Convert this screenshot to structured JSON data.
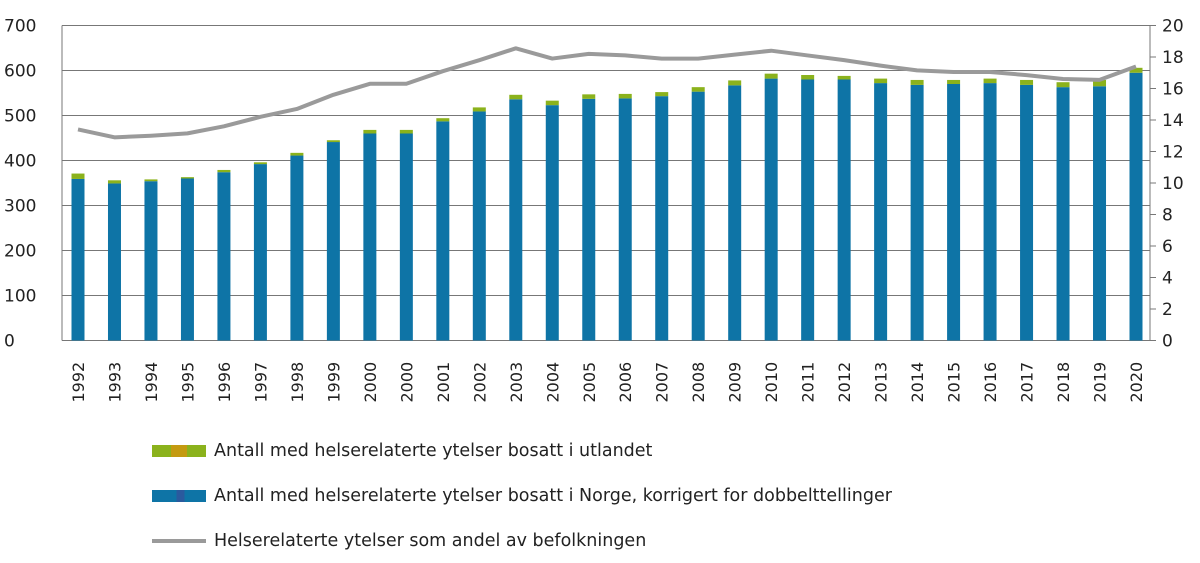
{
  "chart_data": {
    "type": "bar",
    "stacked": true,
    "categories": [
      "1992",
      "1993",
      "1994",
      "1995",
      "1996",
      "1997",
      "1998",
      "1999",
      "2000",
      "2000",
      "2001",
      "2002",
      "2003",
      "2004",
      "2005",
      "2006",
      "2007",
      "2008",
      "2009",
      "2010",
      "2011",
      "2012",
      "2013",
      "2014",
      "2015",
      "2016",
      "2017",
      "2018",
      "2019",
      "2020"
    ],
    "series": [
      {
        "name": "Antall med helserelaterte ytelser bosatt i Norge, korrigert for dobbelttellinger",
        "type": "bar",
        "axis": "left",
        "color": "#0e74a6",
        "values": [
          359,
          349,
          354,
          360,
          374,
          392,
          411,
          441,
          460,
          460,
          487,
          509,
          536,
          523,
          537,
          538,
          543,
          553,
          567,
          582,
          580,
          580,
          572,
          568,
          570,
          572,
          568,
          563,
          565,
          595
        ]
      },
      {
        "name": "Antall med helserelaterte ytelser bosatt i utlandet",
        "type": "bar",
        "axis": "left",
        "color": "#8bb21c",
        "values": [
          12,
          7,
          4,
          3,
          5,
          4,
          6,
          4,
          8,
          8,
          7,
          9,
          10,
          10,
          10,
          10,
          9,
          10,
          11,
          11,
          10,
          8,
          10,
          11,
          9,
          10,
          11,
          11,
          14,
          11
        ]
      },
      {
        "name": "Helserelaterte ytelser som andel av befolkningen",
        "type": "line",
        "axis": "right",
        "color": "#9a9a9a",
        "values": [
          13.4,
          12.9,
          13.0,
          13.15,
          13.6,
          14.2,
          14.7,
          15.6,
          16.3,
          16.3,
          17.1,
          17.8,
          18.55,
          17.9,
          18.2,
          18.1,
          17.9,
          17.9,
          18.15,
          18.4,
          18.1,
          17.8,
          17.45,
          17.15,
          17.05,
          17.05,
          16.85,
          16.6,
          16.55,
          17.4
        ]
      }
    ],
    "y_left": {
      "lim": [
        0,
        700
      ],
      "ticks": [
        "0",
        "100",
        "200",
        "300",
        "400",
        "500",
        "600",
        "700"
      ]
    },
    "y_right": {
      "lim": [
        0,
        20
      ],
      "ticks": [
        "0",
        "2",
        "4",
        "6",
        "8",
        "10",
        "12",
        "14",
        "16",
        "18",
        "20"
      ]
    },
    "grid": true,
    "legend_position": "bottom"
  },
  "legend": [
    {
      "label": "Antall med helserelaterte ytelser bosatt i utlandet"
    },
    {
      "label": "Antall med helserelaterte ytelser bosatt i Norge, korrigert for dobbelttellinger"
    },
    {
      "label": "Helserelaterte ytelser som andel av befolkningen"
    }
  ]
}
